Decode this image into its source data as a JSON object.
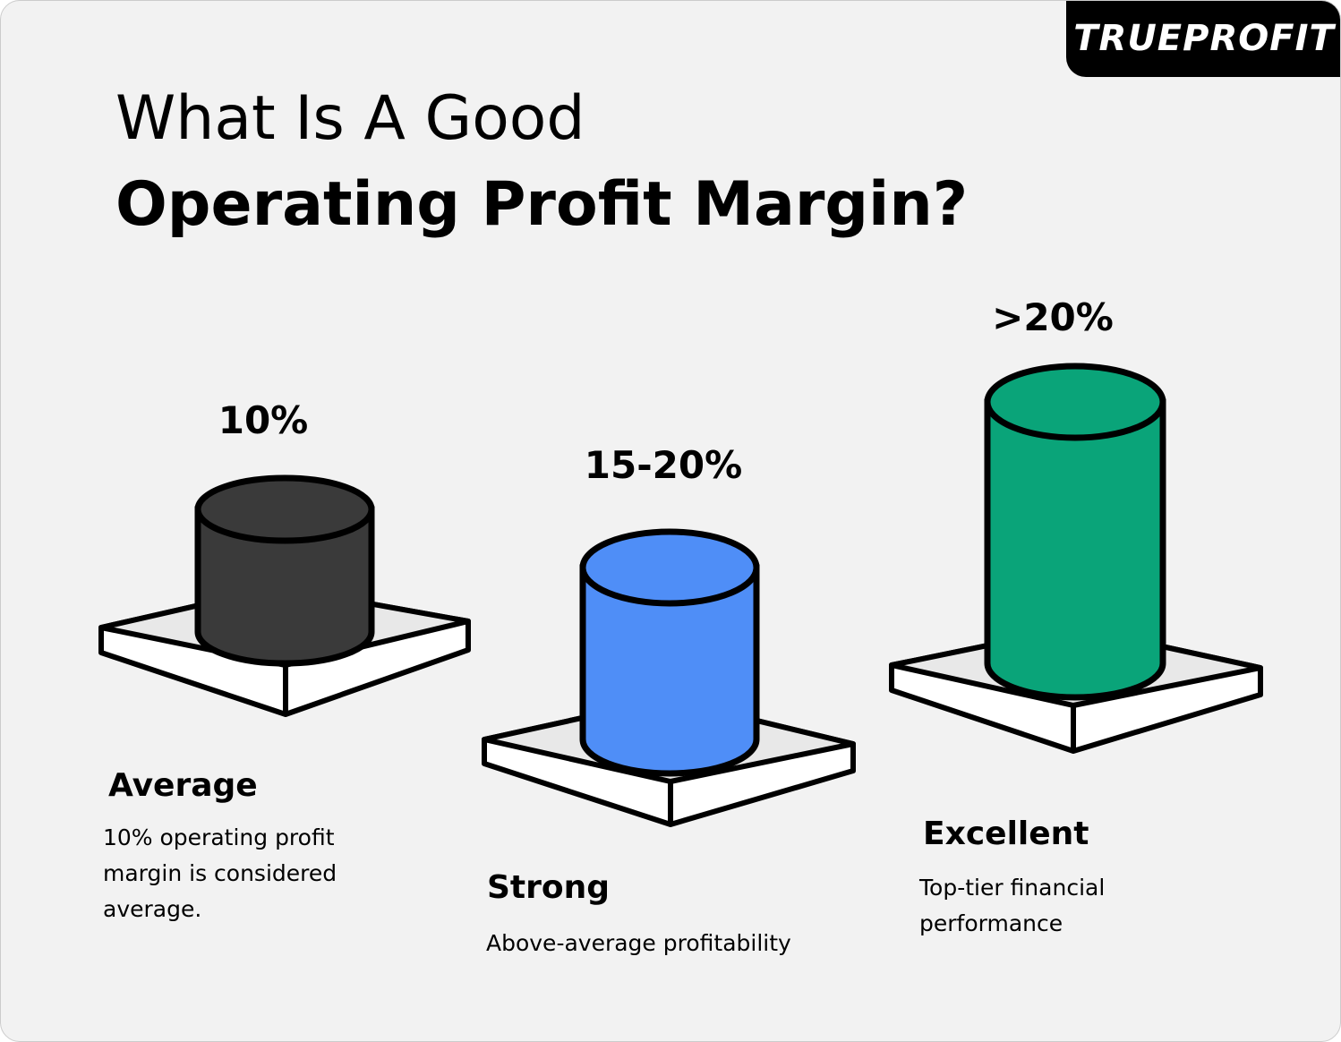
{
  "logo": "TRUEPROFIT",
  "title": {
    "line1": "What Is A Good",
    "line2": "Operating Profit Margin?"
  },
  "tiers": [
    {
      "value": "10%",
      "label": "Average",
      "description": "10% operating profit margin is considered average."
    },
    {
      "value": "15-20%",
      "label": "Strong",
      "description": "Above-average profitability"
    },
    {
      "value": ">20%",
      "label": "Excellent",
      "description": "Top-tier financial performance"
    }
  ]
}
